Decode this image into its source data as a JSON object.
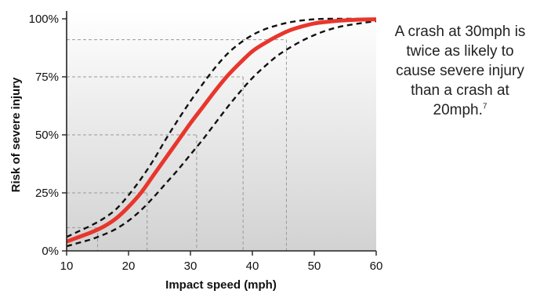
{
  "chart_data": {
    "type": "line",
    "title": "",
    "xlabel": "Impact speed (mph)",
    "ylabel": "Risk of severe injury",
    "xlim": [
      10,
      60
    ],
    "ylim": [
      0,
      100
    ],
    "x_ticks": [
      "10",
      "20",
      "30",
      "40",
      "50",
      "60"
    ],
    "y_ticks": [
      "0%",
      "25%",
      "50%",
      "75%",
      "100%"
    ],
    "grid": false,
    "legend": "none",
    "series": [
      {
        "role": "estimate",
        "color": "#e8362c",
        "style": "solid",
        "x": [
          10,
          12,
          14,
          16,
          18,
          20,
          22,
          24,
          26,
          28,
          30,
          32,
          34,
          36,
          38,
          40,
          42,
          44,
          46,
          48,
          50,
          52,
          54,
          56,
          58,
          60
        ],
        "y": [
          4,
          6,
          8,
          10.5,
          14,
          19,
          25,
          32.5,
          40,
          47.5,
          55,
          62,
          69,
          75.5,
          81,
          86,
          89.5,
          92.5,
          95,
          96.7,
          98,
          98.7,
          99.2,
          99.5,
          99.7,
          99.8
        ]
      },
      {
        "role": "upper-bound",
        "color": "#111111",
        "style": "dashed",
        "x": [
          10,
          12,
          14,
          16,
          18,
          20,
          22,
          24,
          26,
          28,
          30,
          32,
          34,
          36,
          38,
          40,
          42,
          44,
          46,
          48,
          50,
          52,
          54,
          56,
          58,
          60
        ],
        "y": [
          6,
          8.5,
          11,
          14,
          18,
          24,
          31,
          39,
          48,
          56.5,
          64.5,
          72,
          79,
          85,
          89.5,
          93,
          95.5,
          97.2,
          98.5,
          99.3,
          99.8,
          100,
          100,
          100,
          100,
          100
        ]
      },
      {
        "role": "lower-bound",
        "color": "#111111",
        "style": "dashed",
        "x": [
          10,
          12,
          14,
          16,
          18,
          20,
          22,
          24,
          26,
          28,
          30,
          32,
          34,
          36,
          38,
          40,
          42,
          44,
          46,
          48,
          50,
          52,
          54,
          56,
          58,
          60
        ],
        "y": [
          2,
          3.5,
          5,
          7,
          9.5,
          13,
          17.5,
          23,
          29,
          35,
          41.5,
          48,
          55,
          62,
          68.5,
          74.5,
          79.5,
          84,
          87.5,
          90.5,
          93,
          95,
          96.5,
          97.5,
          98.3,
          99
        ]
      }
    ],
    "reference_lines": [
      {
        "x": 15,
        "y": 10
      },
      {
        "x": 23,
        "y": 25
      },
      {
        "x": 31,
        "y": 50
      },
      {
        "x": 38.5,
        "y": 75
      },
      {
        "x": 45.5,
        "y": 91
      }
    ],
    "colors": {
      "plot_background_top": "#ffffff",
      "plot_background_bottom": "#d2d2d2",
      "reference_line": "#999999",
      "axis": "#222222"
    }
  },
  "annotation": {
    "text": "A crash at 30mph is twice as likely to cause severe injury than a crash at 20mph.",
    "footnote": "7"
  }
}
